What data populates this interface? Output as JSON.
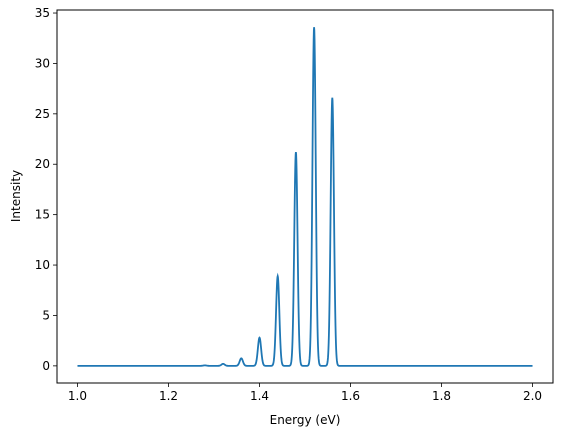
{
  "chart_data": {
    "type": "line",
    "xlabel": "Energy (eV)",
    "ylabel": "Intensity",
    "xlim": [
      0.955,
      2.045
    ],
    "ylim": [
      -1.7,
      35.3
    ],
    "xticks": [
      1.0,
      1.2,
      1.4,
      1.6,
      1.8,
      2.0
    ],
    "xtick_labels": [
      "1.0",
      "1.2",
      "1.4",
      "1.6",
      "1.8",
      "2.0"
    ],
    "yticks": [
      0,
      5,
      10,
      15,
      20,
      25,
      30,
      35
    ],
    "ytick_labels": [
      "0",
      "5",
      "10",
      "15",
      "20",
      "25",
      "30",
      "35"
    ],
    "grid": false,
    "line_color": "#1f77b4",
    "series": [
      {
        "peaks": [
          {
            "x": 1.28,
            "y": 0.05
          },
          {
            "x": 1.32,
            "y": 0.2
          },
          {
            "x": 1.36,
            "y": 0.75
          },
          {
            "x": 1.4,
            "y": 2.8
          },
          {
            "x": 1.44,
            "y": 8.9
          },
          {
            "x": 1.48,
            "y": 21.2
          },
          {
            "x": 1.52,
            "y": 33.6
          },
          {
            "x": 1.56,
            "y": 26.6
          }
        ],
        "x_range": [
          1.0,
          2.0
        ]
      }
    ]
  }
}
